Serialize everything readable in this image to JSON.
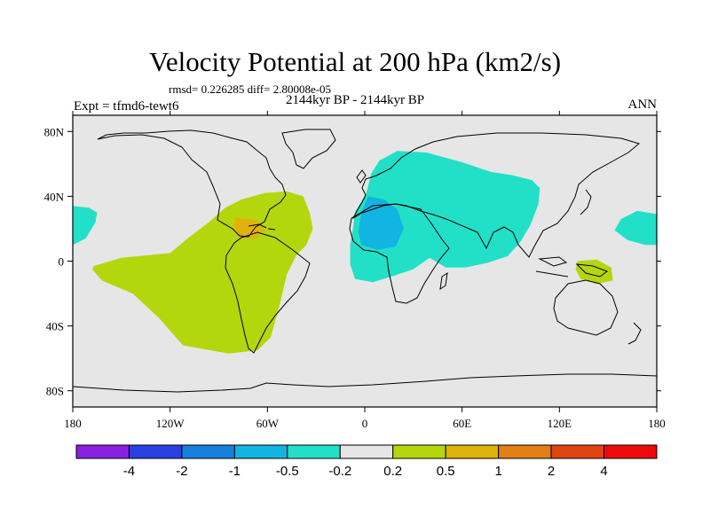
{
  "title": "Velocity Potential at 200 hPa (km2/s)",
  "stats": "rmsd= 0.226285 diff= 2.80008e-05",
  "experiment": "Expt = tfmd6-tewt6",
  "time_range": "2144kyr BP - 2144kyr BP",
  "season": "ANN",
  "map": {
    "projection": "cylindrical-equidistant",
    "lon_range": [
      -180,
      180
    ],
    "lat_range": [
      -90,
      90
    ],
    "lon_ticks": [
      {
        "value": -180,
        "label": "180"
      },
      {
        "value": -120,
        "label": "120W"
      },
      {
        "value": -60,
        "label": "60W"
      },
      {
        "value": 0,
        "label": "0"
      },
      {
        "value": 60,
        "label": "60E"
      },
      {
        "value": 120,
        "label": "120E"
      },
      {
        "value": 180,
        "label": "180"
      }
    ],
    "lat_ticks": [
      {
        "value": 80,
        "label": "80N"
      },
      {
        "value": 40,
        "label": "40N"
      },
      {
        "value": 0,
        "label": "0"
      },
      {
        "value": -40,
        "label": "40S"
      },
      {
        "value": -80,
        "label": "80S"
      }
    ],
    "background_color": "#e6e6e6"
  },
  "colorbar": {
    "colors": [
      "#8a20e0",
      "#2a3fe0",
      "#1680de",
      "#12b4e2",
      "#22e0c8",
      "#e6e6e6",
      "#b4d60c",
      "#e0b20c",
      "#e08014",
      "#e04410",
      "#ec0a0a"
    ],
    "labels": [
      "-4",
      "-2",
      "-1",
      "-0.5",
      "-0.2",
      "0.2",
      "0.5",
      "1",
      "2",
      "4"
    ]
  },
  "chart_data": {
    "type": "filled-contour-map",
    "title": "Velocity Potential at 200 hPa (km2/s)",
    "units": "km2/s",
    "levels": [
      -4,
      -2,
      -1,
      -0.5,
      -0.2,
      0.2,
      0.5,
      1,
      2,
      4
    ],
    "regions": [
      {
        "name": "western-hemisphere-positive",
        "level_range": [
          0.2,
          0.5
        ],
        "outline": [
          [
            -167,
            -3
          ],
          [
            -150,
            2
          ],
          [
            -120,
            5
          ],
          [
            -108,
            15
          ],
          [
            -96,
            24
          ],
          [
            -86,
            33
          ],
          [
            -76,
            38
          ],
          [
            -62,
            42
          ],
          [
            -48,
            43
          ],
          [
            -38,
            40
          ],
          [
            -34,
            30
          ],
          [
            -32,
            20
          ],
          [
            -36,
            10
          ],
          [
            -42,
            4
          ],
          [
            -48,
            -8
          ],
          [
            -52,
            -25
          ],
          [
            -56,
            -40
          ],
          [
            -58,
            -47
          ],
          [
            -66,
            -55
          ],
          [
            -84,
            -57
          ],
          [
            -112,
            -52
          ],
          [
            -127,
            -35
          ],
          [
            -143,
            -20
          ],
          [
            -162,
            -12
          ],
          [
            -168,
            -5
          ]
        ]
      },
      {
        "name": "eastern-hemisphere-negative",
        "level_range": [
          -0.5,
          -0.2
        ],
        "outline": [
          [
            -6,
            30
          ],
          [
            1,
            42
          ],
          [
            4,
            54
          ],
          [
            9,
            62
          ],
          [
            20,
            68
          ],
          [
            38,
            67
          ],
          [
            60,
            61
          ],
          [
            78,
            55
          ],
          [
            91,
            53
          ],
          [
            103,
            50
          ],
          [
            108,
            45
          ],
          [
            107,
            35
          ],
          [
            102,
            22
          ],
          [
            96,
            12
          ],
          [
            88,
            3
          ],
          [
            76,
            -1
          ],
          [
            62,
            -4
          ],
          [
            50,
            -4
          ],
          [
            40,
            2
          ],
          [
            30,
            -5
          ],
          [
            18,
            -9
          ],
          [
            5,
            -13
          ],
          [
            -6,
            -11
          ],
          [
            -9,
            -2
          ],
          [
            -9,
            10
          ],
          [
            -7,
            22
          ]
        ]
      },
      {
        "name": "pacific-east-negative",
        "level_range": [
          -0.5,
          -0.2
        ],
        "outline": [
          [
            -180,
            34
          ],
          [
            -170,
            33
          ],
          [
            -165,
            30
          ],
          [
            -166,
            24
          ],
          [
            -172,
            14
          ],
          [
            -180,
            10
          ]
        ]
      },
      {
        "name": "pacific-west-negative",
        "level_range": [
          -0.5,
          -0.2
        ],
        "outline": [
          [
            180,
            29
          ],
          [
            168,
            31
          ],
          [
            158,
            26
          ],
          [
            154,
            19
          ],
          [
            162,
            13
          ],
          [
            173,
            10
          ],
          [
            180,
            10
          ]
        ]
      },
      {
        "name": "north-africa-negative",
        "level_range": [
          -1,
          -0.5
        ],
        "outline": [
          [
            2,
            40
          ],
          [
            12,
            38
          ],
          [
            20,
            32
          ],
          [
            24,
            20
          ],
          [
            19,
            9
          ],
          [
            8,
            7
          ],
          [
            -2,
            10
          ],
          [
            -4,
            18
          ],
          [
            -2,
            30
          ]
        ]
      },
      {
        "name": "caribbean-positive",
        "level_range": [
          0.5,
          1
        ],
        "outline": [
          [
            -80,
            27
          ],
          [
            -66,
            25
          ],
          [
            -62,
            19
          ],
          [
            -67,
            14
          ],
          [
            -77,
            14
          ],
          [
            -81,
            19
          ]
        ]
      },
      {
        "name": "new-guinea-positive",
        "level_range": [
          0.2,
          0.5
        ],
        "outline": [
          [
            131,
            0
          ],
          [
            143,
            1
          ],
          [
            152,
            -4
          ],
          [
            153,
            -12
          ],
          [
            143,
            -14
          ],
          [
            133,
            -11
          ],
          [
            130,
            -5
          ]
        ]
      }
    ]
  }
}
